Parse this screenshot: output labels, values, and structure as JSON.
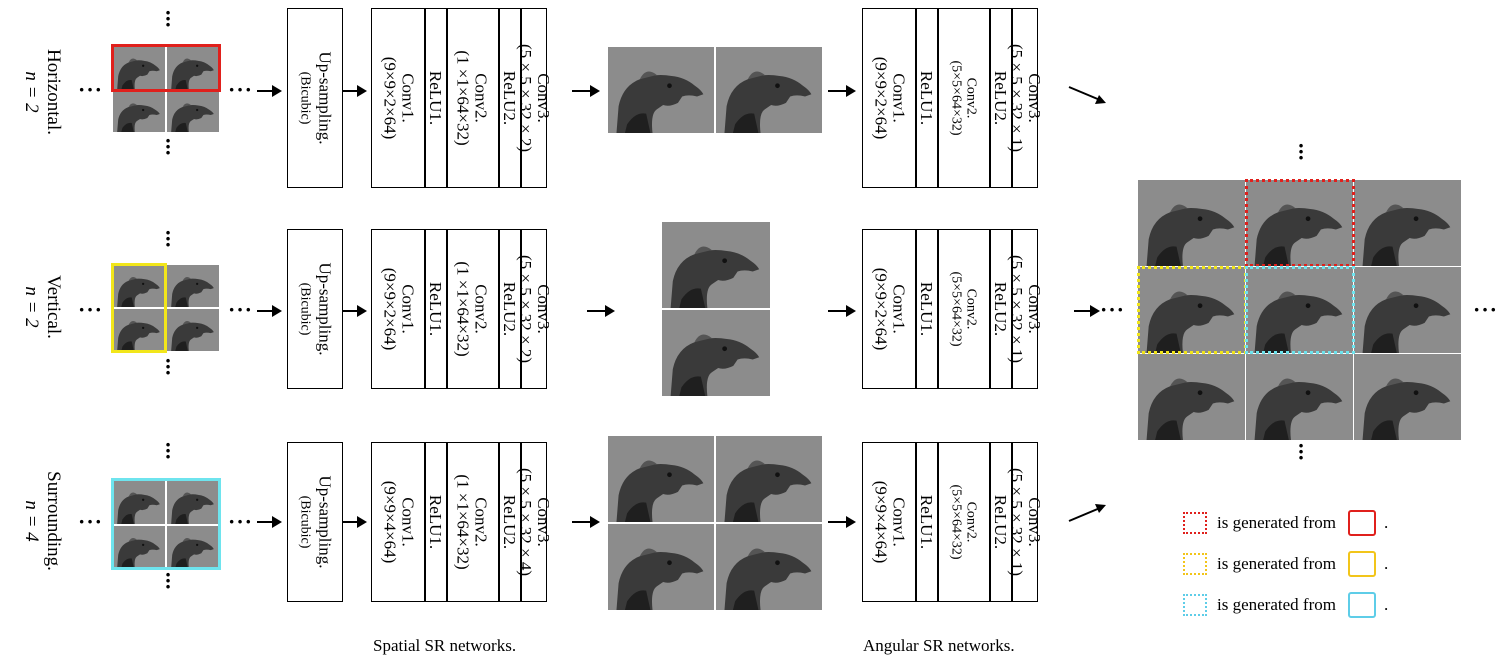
{
  "rows": [
    {
      "label": "Horizontal.",
      "n": "n = 2"
    },
    {
      "label": "Vertical.",
      "n": "n = 2"
    },
    {
      "label": "Surrounding.",
      "n": "n = 4"
    }
  ],
  "upsampling": {
    "title": "Up-sampling.",
    "sub": "(Bicubic)"
  },
  "spatial_layers": [
    {
      "conv1": "Conv1.",
      "conv1_dim": "(9×9×2×64)",
      "relu1": "ReLU1.",
      "conv2": "Conv2.",
      "conv2_dim": "(1 ×1×64×32)",
      "relu2": "ReLU2.",
      "conv3": "Conv3.",
      "conv3_dim": "(5 × 5 × 32 × 2)"
    },
    {
      "conv1": "Conv1.",
      "conv1_dim": "(9×9×2×64)",
      "relu1": "ReLU1.",
      "conv2": "Conv2.",
      "conv2_dim": "(1 ×1×64×32)",
      "relu2": "ReLU2.",
      "conv3": "Conv3.",
      "conv3_dim": "(5 × 5 × 32 × 2)"
    },
    {
      "conv1": "Conv1.",
      "conv1_dim": "(9×9×4×64)",
      "relu1": "ReLU1.",
      "conv2": "Conv2.",
      "conv2_dim": "(1 ×1×64×32)",
      "relu2": "ReLU2.",
      "conv3": "Conv3.",
      "conv3_dim": "(5 × 5 × 32 × 4)"
    }
  ],
  "angular_layers": [
    {
      "conv1": "Conv1.",
      "conv1_dim": "(9×9×2×64)",
      "relu1": "ReLU1.",
      "conv2": "Conv2.",
      "conv2_dim": "(5×5×64×32)",
      "relu2": "ReLU2.",
      "conv3": "Conv3.",
      "conv3_dim": "(5 × 5 × 32 × 1)"
    },
    {
      "conv1": "Conv1.",
      "conv1_dim": "(9×9×2×64)",
      "relu1": "ReLU1.",
      "conv2": "Conv2.",
      "conv2_dim": "(5×5×64×32)",
      "relu2": "ReLU2.",
      "conv3": "Conv3.",
      "conv3_dim": "(5 × 5 × 32 × 1)"
    },
    {
      "conv1": "Conv1.",
      "conv1_dim": "(9×9×4×64)",
      "relu1": "ReLU1.",
      "conv2": "Conv2.",
      "conv2_dim": "(5×5×64×32)",
      "relu2": "ReLU2.",
      "conv3": "Conv3.",
      "conv3_dim": "(5 × 5 × 32 × 1)"
    }
  ],
  "captions": {
    "spatial": "Spatial SR networks.",
    "angular": "Angular SR networks."
  },
  "legend": [
    {
      "text": "is generated from",
      "color": "#e0201c"
    },
    {
      "text": "is generated from",
      "color": "#f2c51a"
    },
    {
      "text": "is generated from",
      "color": "#5ecde8"
    }
  ],
  "legend_period": ".",
  "dots": "···",
  "colors": {
    "red": "#e0201c",
    "yellow": "#f2e61a",
    "cyan": "#6ee4ee",
    "legend_yellow": "#f2c51a",
    "legend_cyan": "#5ecde8"
  }
}
